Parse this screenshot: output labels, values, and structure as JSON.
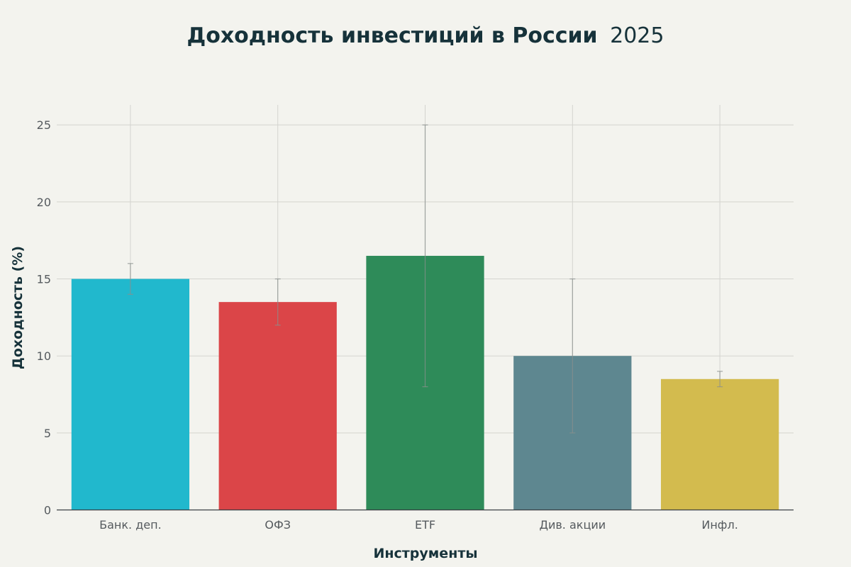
{
  "chart_data": {
    "type": "bar",
    "title": "Доходность инвестиций в России",
    "subtitle": "2025",
    "xlabel": "Инструменты",
    "ylabel": "Доходность (%)",
    "categories": [
      "Банк. деп.",
      "ОФЗ",
      "ETF",
      "Див. акции",
      "Инфл."
    ],
    "values": [
      15,
      13.5,
      16.5,
      10,
      8.5
    ],
    "error_low": [
      14,
      12,
      8,
      5,
      8
    ],
    "error_high": [
      16,
      15,
      25,
      15,
      9
    ],
    "colors": [
      "#21b8cd",
      "#db4548",
      "#2e8b59",
      "#5e8790",
      "#d3bb4e"
    ],
    "ylim": [
      0,
      26.3
    ],
    "yticks": [
      0,
      5,
      10,
      15,
      20,
      25
    ],
    "grid": true,
    "legend": "none"
  },
  "colors": {
    "background": "#f3f3ee",
    "title": "#16323a",
    "grid": "#d4d4cf",
    "error_bar": "#8a8f8c"
  }
}
